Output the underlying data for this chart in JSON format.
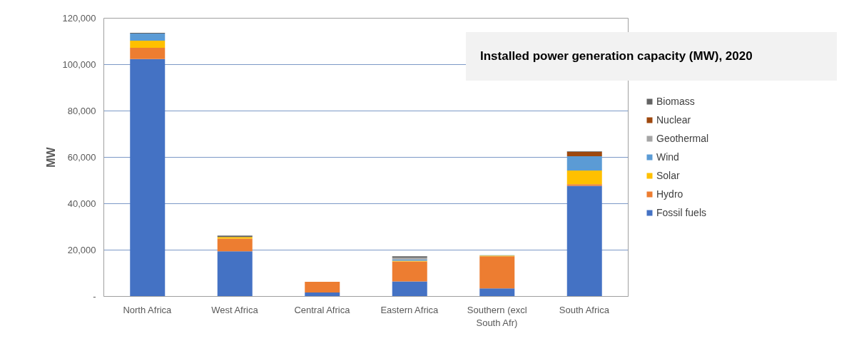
{
  "chart_data": {
    "type": "bar",
    "stacked": true,
    "title": "Installed power generation capacity (MW), 2020",
    "ylabel": "MW",
    "categories": [
      "North Africa",
      "West Africa",
      "Central Africa",
      "Eastern Africa",
      "Southern (excl\nSouth Afr)",
      "South Africa"
    ],
    "series": [
      {
        "name": "Fossil fuels",
        "color": "#4472c4",
        "values": [
          102400,
          19500,
          1700,
          6500,
          3500,
          47700
        ]
      },
      {
        "name": "Hydro",
        "color": "#ed7d31",
        "values": [
          4800,
          5400,
          4600,
          8600,
          13800,
          700
        ]
      },
      {
        "name": "Solar",
        "color": "#ffc000",
        "values": [
          3100,
          700,
          0,
          300,
          300,
          5900
        ]
      },
      {
        "name": "Wind",
        "color": "#5b9bd5",
        "values": [
          3100,
          null,
          0,
          500,
          200,
          6200
        ]
      },
      {
        "name": "Geothermal",
        "color": "#a5a5a5",
        "values": [
          0,
          0,
          0,
          900,
          0,
          0
        ]
      },
      {
        "name": "Nuclear",
        "color": "#9e480e",
        "values": [
          0,
          0,
          0,
          0,
          0,
          1900
        ]
      },
      {
        "name": "Biomass",
        "color": "#636363",
        "values": [
          300,
          600,
          null,
          500,
          0,
          200
        ]
      }
    ],
    "ylim": [
      0,
      120000
    ],
    "yticks": [
      {
        "value": 0,
        "label": "-"
      },
      {
        "value": 20000,
        "label": "20,000"
      },
      {
        "value": 40000,
        "label": "40,000"
      },
      {
        "value": 60000,
        "label": "60,000"
      },
      {
        "value": 80000,
        "label": "80,000"
      },
      {
        "value": 100000,
        "label": "100,000"
      },
      {
        "value": 120000,
        "label": "120,000"
      }
    ],
    "grid": "y",
    "legend": "right"
  }
}
